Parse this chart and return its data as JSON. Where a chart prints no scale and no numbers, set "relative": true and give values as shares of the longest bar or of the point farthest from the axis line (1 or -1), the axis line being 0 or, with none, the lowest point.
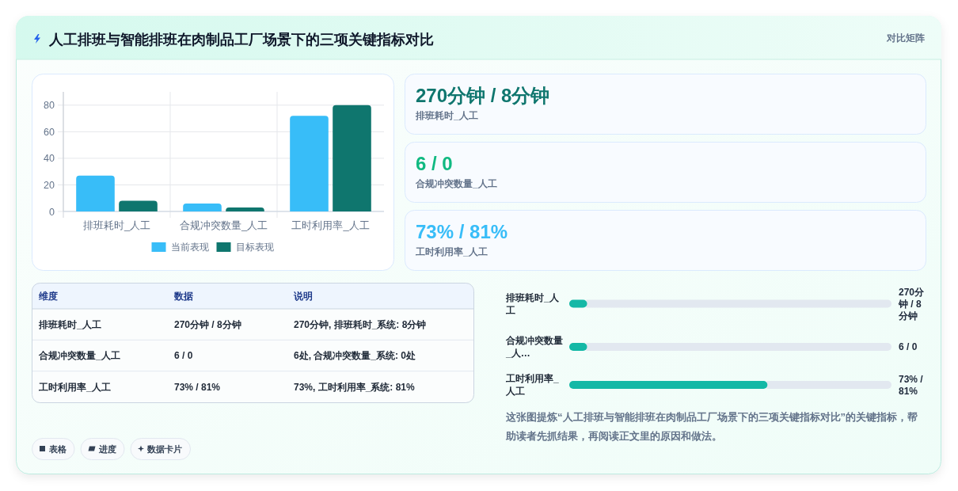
{
  "chart_data": [
    {
      "type": "other",
      "title": "人工排班与智能排班在肉制品工厂场景下的三项关键指标对比",
      "annotations": [
        "对比矩阵"
      ]
    },
    {
      "type": "bar",
      "categories": [
        "排班耗时_人工",
        "合规冲突数量_人工",
        "工时利用率_人工"
      ],
      "series": [
        {
          "name": "当前表现",
          "color": "#38bdf8",
          "values": [
            27,
            6,
            72
          ]
        },
        {
          "name": "目标表现",
          "color": "#0f766e",
          "values": [
            8,
            3,
            80
          ]
        }
      ],
      "ylim": [
        0,
        90
      ],
      "yticks": [
        0,
        20,
        40,
        60,
        80
      ],
      "grid": true,
      "legend": "bottom"
    },
    {
      "type": "other",
      "title": "270分钟 / 8分钟",
      "subtitle": "排班耗时_人工",
      "color": "#0f766e"
    },
    {
      "type": "other",
      "title": "6 / 0",
      "subtitle": "合规冲突数量_人工",
      "color": "#10b981"
    },
    {
      "type": "other",
      "title": "73% / 81%",
      "subtitle": "工时利用率_人工",
      "color": "#38bdf8"
    },
    {
      "type": "other",
      "categories": [
        "维度",
        "数据",
        "说明"
      ],
      "annotations": [
        "排班耗时_人工",
        "270分钟 / 8分钟",
        "270分钟, 排班耗时_系统: 8分钟",
        "合规冲突数量_人工",
        "6 / 0",
        "6处, 合规冲突数量_系统: 0处",
        "工时利用率_人工",
        "73% / 81%",
        "73%, 工时利用率_系统: 81%"
      ]
    },
    {
      "type": "bar",
      "orientation": "horizontal",
      "relative": true,
      "categories": [
        "排班耗时_人工",
        "合规冲突数量_人…",
        "工时利用率_人工"
      ],
      "values": [
        0.09,
        0.09,
        1
      ],
      "annotations": [
        "270分钟 / 8分钟",
        "6 / 0",
        "73% / 81%"
      ],
      "color": "#14b8a6"
    },
    {
      "type": "other",
      "annotations": [
        "这张图提炼“人工排班与智能排班在肉制品工厂场景下的三项关键指标对比”的关键指标，帮助读者先抓结果，再阅读正文里的原因和做法。"
      ]
    },
    {
      "type": "other",
      "annotations": [
        "表格",
        "进度",
        "数据卡片"
      ]
    }
  ]
}
